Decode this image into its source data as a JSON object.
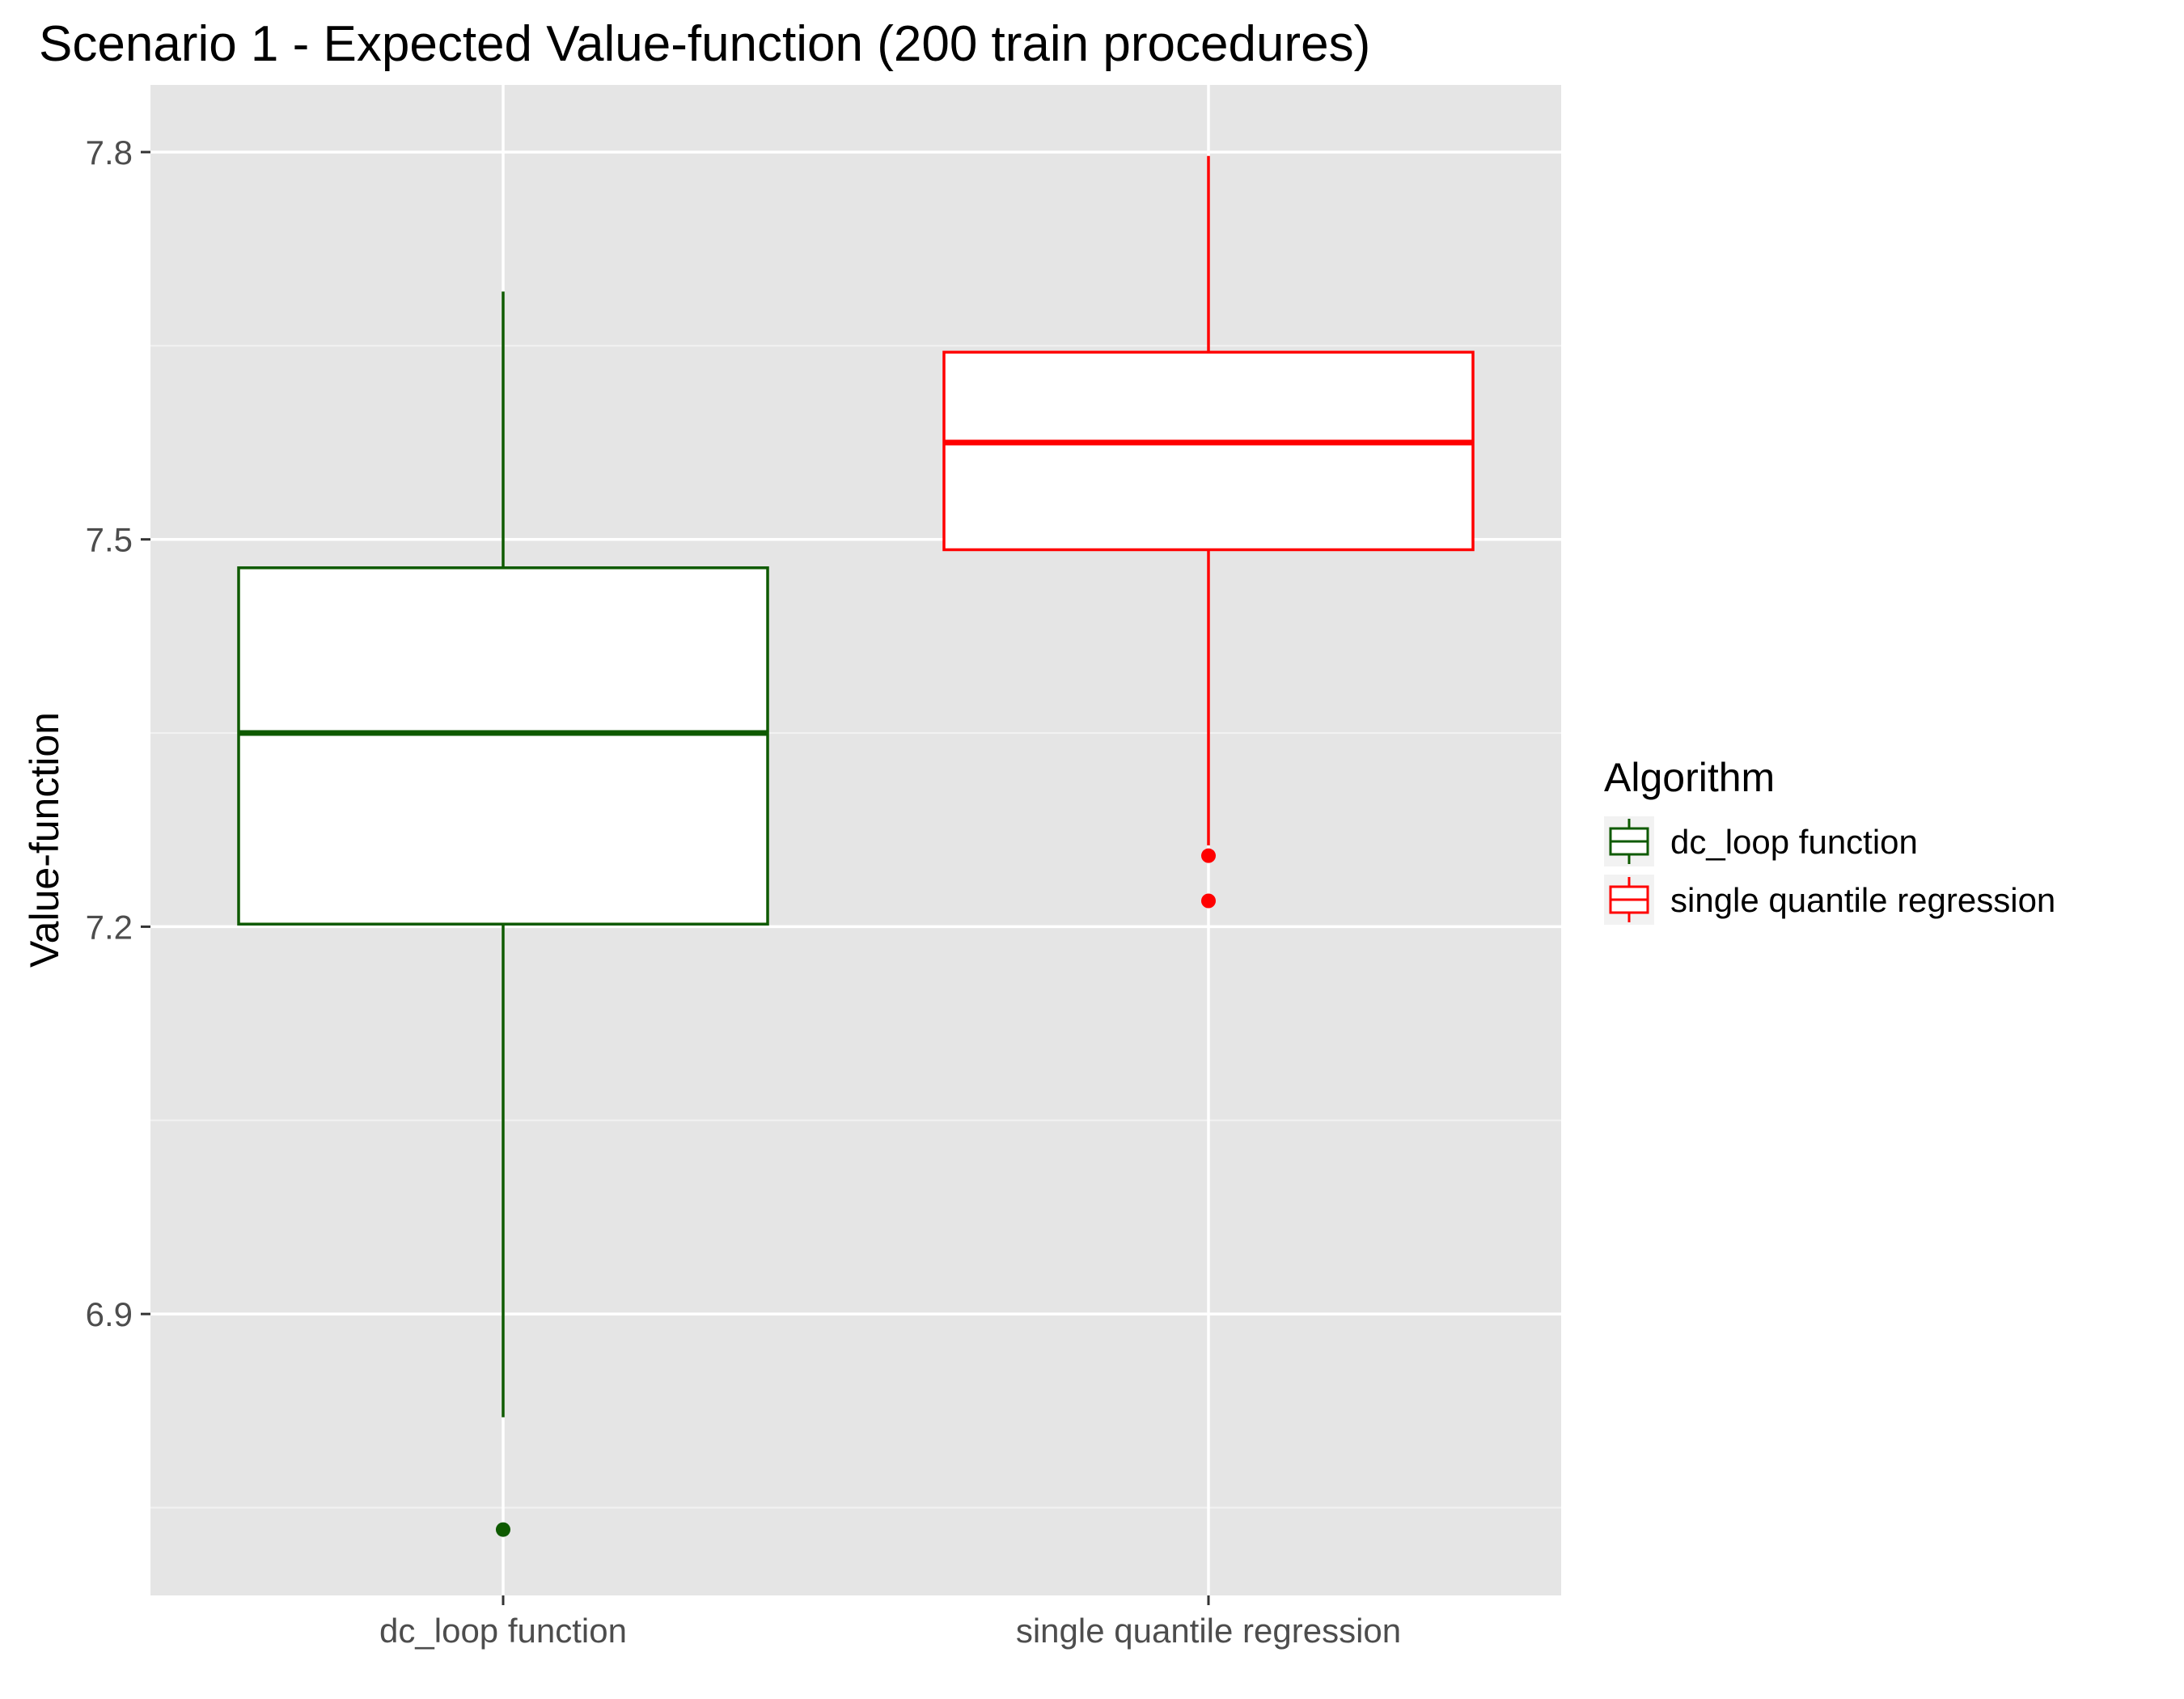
{
  "chart_data": {
    "type": "boxplot",
    "title": "Scenario 1 - Expected Value-function (200 train procedures)",
    "xlabel": "",
    "ylabel": "Value-function",
    "ylim": [
      6.682,
      7.852
    ],
    "yticks": [
      6.9,
      7.2,
      7.5,
      7.8
    ],
    "ytick_labels": [
      "6.9",
      "7.2",
      "7.5",
      "7.8"
    ],
    "grid": true,
    "legend": {
      "title": "Algorithm",
      "position": "right",
      "entries": [
        "dc_loop function",
        "single quantile regression"
      ]
    },
    "categories": [
      "dc_loop function",
      "single quantile regression"
    ],
    "series": [
      {
        "name": "dc_loop function",
        "color": "#0e5a00",
        "whisker_low": 6.82,
        "q1": 7.202,
        "median": 7.35,
        "q3": 7.478,
        "whisker_high": 7.692,
        "outliers": [
          6.733
        ]
      },
      {
        "name": "single quantile regression",
        "color": "#ff0000",
        "whisker_low": 7.263,
        "q1": 7.492,
        "median": 7.575,
        "q3": 7.645,
        "whisker_high": 7.797,
        "outliers": [
          7.255,
          7.22
        ]
      }
    ]
  }
}
